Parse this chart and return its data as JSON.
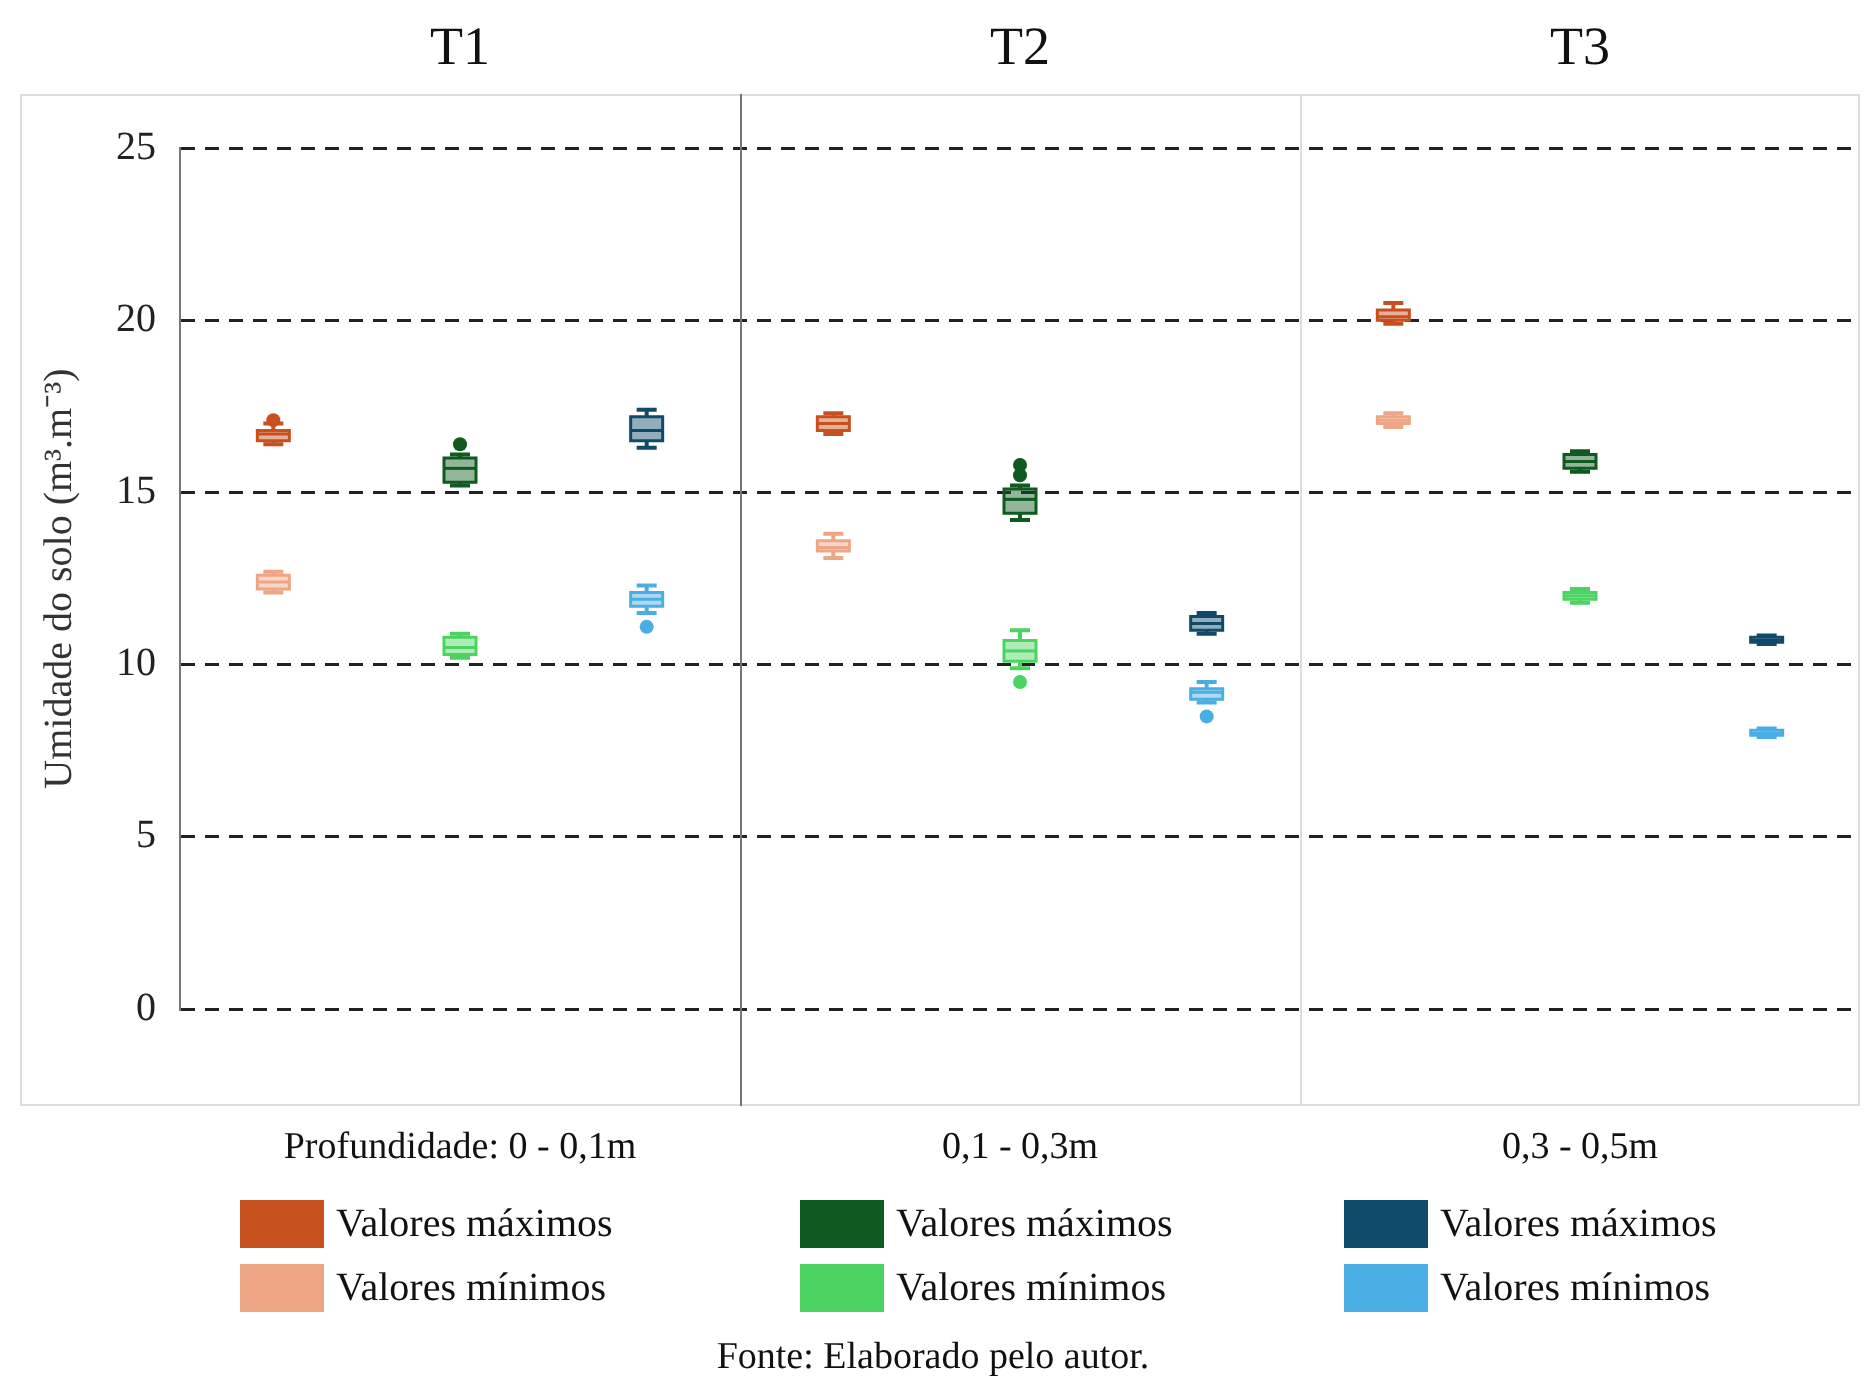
{
  "chart_data": {
    "type": "box",
    "ylabel": "Umidade do solo (m³.m⁻³)",
    "categories": [
      null,
      null,
      null,
      null,
      null,
      null,
      null,
      null,
      null
    ],
    "ylim": [
      0,
      25
    ],
    "yticks": [
      0,
      5,
      10,
      15,
      20,
      25
    ],
    "grid": "y",
    "legend": "bottom",
    "annotations": [
      "T1",
      "T2",
      "T3",
      "Profundidade: 0 - 0,1m",
      "0,1 - 0,3m",
      "0,3 - 0,5m",
      "Fonte: Elaborado pelo autor."
    ],
    "series": [
      {
        "name": "Valores máximos",
        "color": "#c8501e",
        "boxes": [
          {
            "low": 16.4,
            "q1": 16.5,
            "median": 16.7,
            "q3": 16.8,
            "high": 17.0,
            "outliers": [
              17.1
            ]
          },
          null,
          null,
          {
            "low": 16.7,
            "q1": 16.8,
            "median": 17.0,
            "q3": 17.2,
            "high": 17.3
          },
          null,
          null,
          {
            "low": 19.9,
            "q1": 20.0,
            "median": 20.1,
            "q3": 20.3,
            "high": 20.5
          },
          null,
          null
        ]
      },
      {
        "name": "Valores mínimos",
        "color": "#eea584",
        "boxes": [
          {
            "low": 12.1,
            "q1": 12.2,
            "median": 12.4,
            "q3": 12.6,
            "high": 12.7
          },
          null,
          null,
          {
            "low": 13.1,
            "q1": 13.3,
            "median": 13.4,
            "q3": 13.6,
            "high": 13.8
          },
          null,
          null,
          {
            "low": 16.9,
            "q1": 17.0,
            "median": 17.1,
            "q3": 17.2,
            "high": 17.3
          },
          null,
          null
        ]
      },
      {
        "name": "Valores máximos",
        "color": "#0f5a1e",
        "boxes": [
          null,
          {
            "low": 15.2,
            "q1": 15.3,
            "median": 15.7,
            "q3": 16.0,
            "high": 16.1,
            "outliers": [
              16.4
            ]
          },
          null,
          null,
          {
            "low": 14.2,
            "q1": 14.4,
            "median": 14.8,
            "q3": 15.1,
            "high": 15.2,
            "outliers": [
              15.5,
              15.8
            ]
          },
          null,
          null,
          {
            "low": 15.6,
            "q1": 15.7,
            "median": 15.9,
            "q3": 16.1,
            "high": 16.2
          },
          null
        ]
      },
      {
        "name": "Valores mínimos",
        "color": "#4cd462",
        "boxes": [
          null,
          {
            "low": 10.2,
            "q1": 10.3,
            "median": 10.5,
            "q3": 10.8,
            "high": 10.9
          },
          null,
          null,
          {
            "low": 9.9,
            "q1": 10.1,
            "median": 10.4,
            "q3": 10.7,
            "high": 11.0,
            "outliers": [
              9.5
            ]
          },
          null,
          null,
          {
            "low": 11.8,
            "q1": 11.9,
            "median": 12.0,
            "q3": 12.1,
            "high": 12.2
          },
          null
        ]
      },
      {
        "name": "Valores máximos",
        "color": "#0f4a6a",
        "boxes": [
          null,
          null,
          {
            "low": 16.3,
            "q1": 16.5,
            "median": 16.8,
            "q3": 17.2,
            "high": 17.4
          },
          null,
          null,
          {
            "low": 10.9,
            "q1": 11.0,
            "median": 11.2,
            "q3": 11.4,
            "high": 11.5
          },
          null,
          null,
          {
            "low": 10.6,
            "q1": 10.65,
            "median": 10.7,
            "q3": 10.8,
            "high": 10.85
          }
        ]
      },
      {
        "name": "Valores mínimos",
        "color": "#4aaee4",
        "boxes": [
          null,
          null,
          {
            "low": 11.5,
            "q1": 11.7,
            "median": 11.9,
            "q3": 12.1,
            "high": 12.3,
            "outliers": [
              11.1
            ]
          },
          null,
          null,
          {
            "low": 8.9,
            "q1": 9.0,
            "median": 9.2,
            "q3": 9.3,
            "high": 9.5,
            "outliers": [
              8.5
            ]
          },
          null,
          null,
          {
            "low": 7.9,
            "q1": 7.95,
            "median": 8.0,
            "q3": 8.1,
            "high": 8.15
          }
        ]
      }
    ]
  }
}
